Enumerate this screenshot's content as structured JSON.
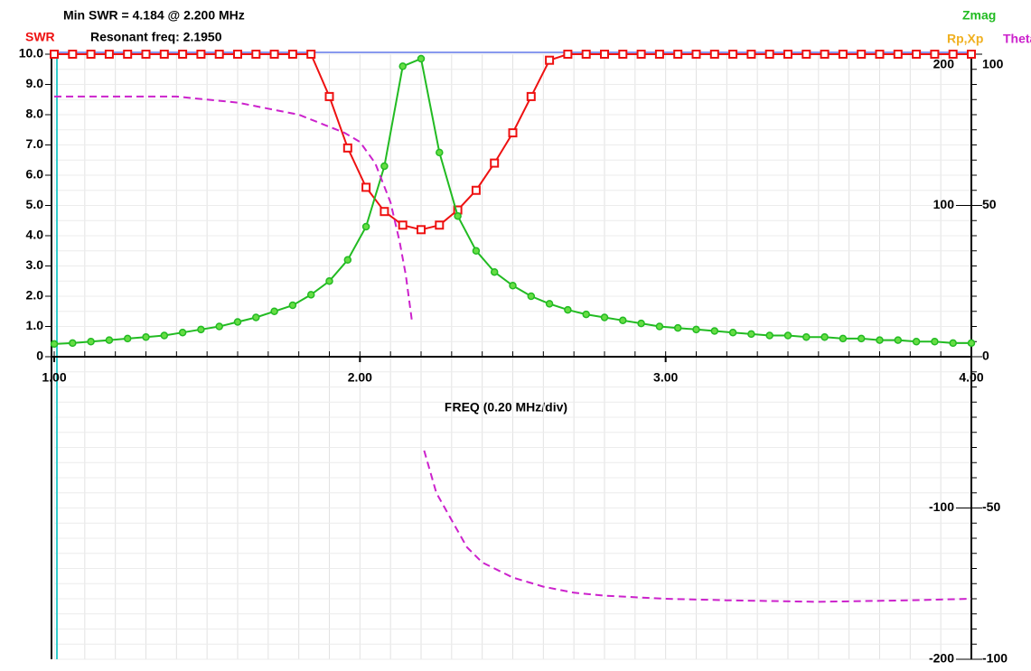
{
  "chart_data": {
    "type": "line",
    "title": "Min SWR =  4.184 @  2.200 MHz",
    "subtitle": "Resonant freq:  2.1950",
    "x_label": "FREQ (0.20 MHz/div)",
    "y_label": "SWR",
    "y2_label": "Rp,Xp",
    "y3_label": "Theta",
    "xlim": [
      1,
      4
    ],
    "xticks": [
      {
        "value": 1,
        "label": "1.00"
      },
      {
        "value": 2,
        "label": "2.00"
      },
      {
        "value": 3,
        "label": "3.00"
      },
      {
        "value": 4,
        "label": "4.00"
      }
    ],
    "x_minor_ticks": [
      1,
      1.1,
      1.2,
      1.3,
      1.4,
      1.5,
      1.6,
      1.7,
      1.8,
      1.9,
      2,
      2.1,
      2.2,
      2.3,
      2.4,
      2.5,
      2.6,
      2.7,
      2.8,
      2.9,
      3,
      3.1,
      3.2,
      3.3,
      3.4,
      3.5,
      3.6,
      3.7,
      3.8,
      3.9,
      4
    ],
    "ylim": [
      0,
      10
    ],
    "yticks": [
      0,
      {
        "value": 1,
        "label": "1.0"
      },
      {
        "value": 2,
        "label": "2.0"
      },
      {
        "value": 3,
        "label": "3.0"
      },
      {
        "value": 4,
        "label": "4.0"
      },
      {
        "value": 5,
        "label": "5.0"
      },
      {
        "value": 6,
        "label": "6.0"
      },
      {
        "value": 7,
        "label": "7.0"
      },
      {
        "value": 8,
        "label": "8.0"
      },
      {
        "value": 9,
        "label": "9.0"
      },
      {
        "value": 10,
        "label": "10.0"
      }
    ],
    "y2lim": [
      -200,
      200
    ],
    "y2ticks": [
      -200,
      -100,
      100,
      200
    ],
    "y3lim": [
      -100,
      100
    ],
    "y3ticks": [
      -100,
      -50,
      0,
      50,
      100
    ],
    "y3_minor_ticks": [
      -100,
      -95,
      -90,
      -85,
      -80,
      -75,
      -70,
      -65,
      -60,
      -55,
      -50,
      -45,
      -40,
      -35,
      -30,
      -25,
      -20,
      -15,
      -10,
      -5,
      0,
      5,
      10,
      15,
      20,
      25,
      30,
      35,
      40,
      45,
      50,
      55,
      60,
      65,
      70,
      75,
      80,
      85,
      90,
      95,
      100
    ],
    "grid": true,
    "x": [
      1,
      1.06,
      1.12,
      1.18,
      1.24,
      1.3,
      1.36,
      1.42,
      1.48,
      1.54,
      1.6,
      1.66,
      1.72,
      1.78,
      1.84,
      1.9,
      1.96,
      2.02,
      2.08,
      2.14,
      2.2,
      2.26,
      2.32,
      2.38,
      2.44,
      2.5,
      2.56,
      2.62,
      2.68,
      2.74,
      2.8,
      2.86,
      2.92,
      2.98,
      3.04,
      3.1,
      3.16,
      3.22,
      3.28,
      3.34,
      3.4,
      3.46,
      3.52,
      3.58,
      3.64,
      3.7,
      3.76,
      3.82,
      3.88,
      3.94,
      4
    ],
    "series": [
      {
        "name": "SWR",
        "color": "#ee1111",
        "axis": "y",
        "marker": "square",
        "values": [
          10,
          10,
          10,
          10,
          10,
          10,
          10,
          10,
          10,
          10,
          10,
          10,
          10,
          10,
          10,
          8.6,
          6.9,
          5.6,
          4.8,
          4.35,
          4.2,
          4.35,
          4.85,
          5.5,
          6.4,
          7.4,
          8.6,
          9.8,
          10,
          10,
          10,
          10,
          10,
          10,
          10,
          10,
          10,
          10,
          10,
          10,
          10,
          10,
          10,
          10,
          10,
          10,
          10,
          10,
          10,
          10,
          10
        ]
      },
      {
        "name": "Zmag",
        "color": "#22bb22",
        "axis": "y2",
        "marker": "circle",
        "values": [
          8.4,
          9,
          10,
          11,
          12,
          13,
          14,
          16,
          18,
          20,
          23,
          26,
          30,
          34,
          41,
          50,
          64,
          86,
          126,
          192,
          197,
          135,
          93,
          70,
          56,
          47,
          40,
          35,
          31,
          28,
          26,
          24,
          22,
          20,
          19,
          18,
          17,
          16,
          15,
          14,
          14,
          13,
          13,
          12,
          12,
          11,
          11,
          10,
          10,
          9,
          9
        ]
      },
      {
        "name": "Theta",
        "color": "#cc22cc",
        "axis": "y3",
        "dashed": true,
        "x": [
          1,
          1.2,
          1.4,
          1.5,
          1.6,
          1.7,
          1.8,
          1.9,
          1.95,
          2,
          2.05,
          2.1,
          2.13,
          2.15,
          2.17,
          2.19,
          2.21,
          2.25,
          2.3,
          2.35,
          2.4,
          2.5,
          2.6,
          2.7,
          2.8,
          3,
          3.2,
          3.5,
          3.8,
          4
        ],
        "values": [
          86,
          86,
          86,
          85,
          84,
          82,
          80,
          76,
          74,
          71,
          64,
          51,
          38,
          27,
          12,
          null,
          -31,
          -45,
          -54,
          -63,
          -68,
          -73,
          -76,
          -78,
          -79,
          -80,
          -80.5,
          -81,
          -80.5,
          -80
        ]
      }
    ]
  }
}
